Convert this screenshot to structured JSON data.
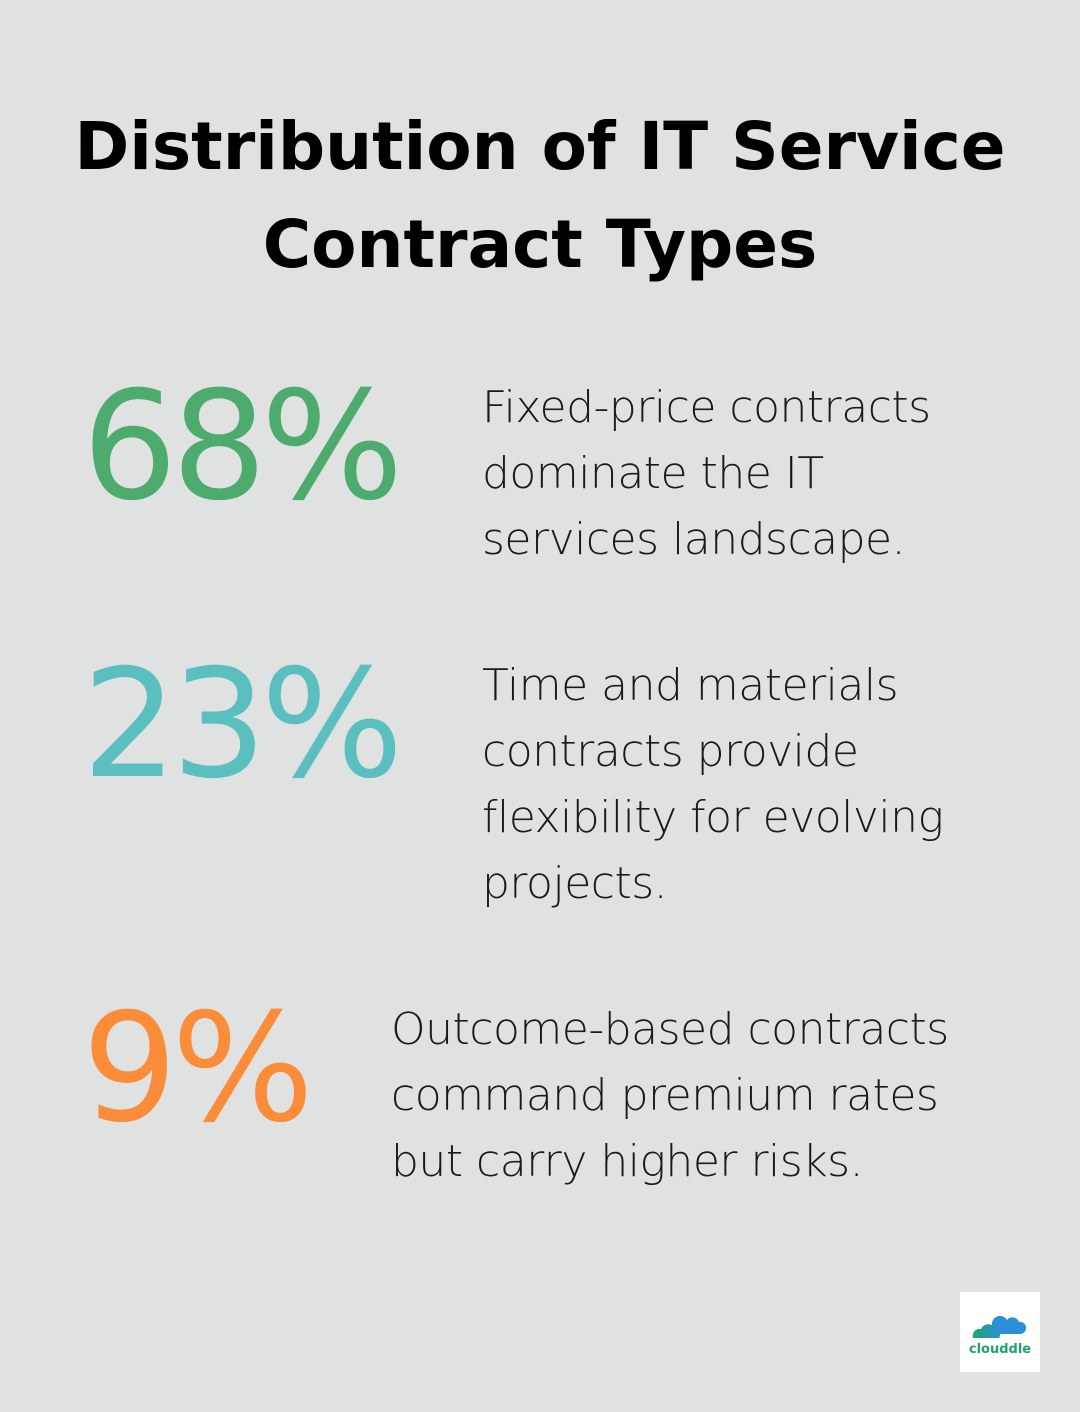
{
  "title": {
    "line1": "Distribution of IT Service",
    "line2": "Contract Types"
  },
  "stats": [
    {
      "value": "68%",
      "color": "#4dab6d",
      "description": [
        "Fixed-price contracts",
        "dominate the IT",
        "services landscape."
      ]
    },
    {
      "value": "23%",
      "color": "#5bbfbf",
      "description": [
        "Time and materials",
        "contracts provide",
        "flexibility for evolving",
        "projects."
      ]
    },
    {
      "value": "9%",
      "color": "#fb8c3a",
      "description": [
        "Outcome-based contracts",
        "command premium rates",
        "but carry higher risks."
      ]
    }
  ],
  "logo": {
    "text": "clouddle"
  }
}
